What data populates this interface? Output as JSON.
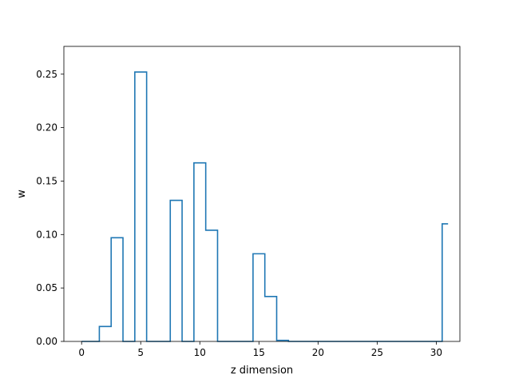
{
  "chart_data": {
    "type": "line",
    "style": "step",
    "title": "",
    "xlabel": "z dimension",
    "ylabel": "w",
    "xlim": [
      -1.5,
      32.0
    ],
    "ylim": [
      0.0,
      0.276
    ],
    "x_ticks": [
      0,
      5,
      10,
      15,
      20,
      25,
      30
    ],
    "y_ticks": [
      0.0,
      0.05,
      0.1,
      0.15,
      0.2,
      0.25
    ],
    "grid": false,
    "legend": "none",
    "colors": {
      "line": "#1f77b4",
      "axes": "#000000",
      "background": "#ffffff"
    },
    "series": [
      {
        "x": [
          0,
          1,
          2,
          3,
          4,
          5,
          6,
          7,
          8,
          9,
          10,
          11,
          12,
          13,
          14,
          15,
          16,
          17,
          18,
          19,
          20,
          21,
          22,
          23,
          24,
          25,
          26,
          27,
          28,
          29,
          30,
          31
        ],
        "y": [
          0.0,
          0.0,
          0.014,
          0.097,
          0.0,
          0.252,
          0.0,
          0.0,
          0.132,
          0.0,
          0.167,
          0.104,
          0.0,
          0.0,
          0.0,
          0.082,
          0.042,
          0.001,
          0.0,
          0.0,
          0.0,
          0.0,
          0.0,
          0.0,
          0.0,
          0.0,
          0.0,
          0.0,
          0.0,
          0.0,
          0.0,
          0.11
        ]
      }
    ]
  }
}
